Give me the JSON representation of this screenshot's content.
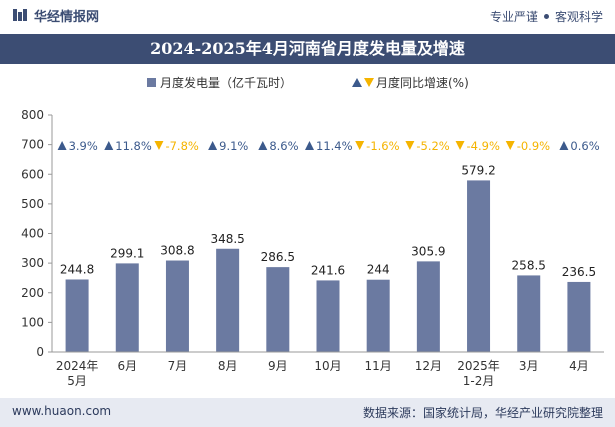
{
  "header": {
    "brand": "华经情报网",
    "slogan_left": "专业严谨",
    "slogan_right": "客观科学"
  },
  "footer": {
    "website": "www.huaon.com",
    "source": "数据来源：国家统计局，华经产业研究院整理"
  },
  "colors": {
    "bar": "#6b7aa1",
    "up": "#3c5a8c",
    "down": "#f5b400",
    "header": "#3c4d73"
  },
  "chart_data": {
    "type": "bar",
    "title": "2024-2025年4月河南省月度发电量及增速",
    "categories": [
      [
        "2024年",
        "5月"
      ],
      [
        "6月"
      ],
      [
        "7月"
      ],
      [
        "8月"
      ],
      [
        "9月"
      ],
      [
        "10月"
      ],
      [
        "11月"
      ],
      [
        "12月"
      ],
      [
        "2025年",
        "1-2月"
      ],
      [
        "3月"
      ],
      [
        "4月"
      ]
    ],
    "series": [
      {
        "name": "月度发电量（亿千瓦时）",
        "values": [
          244.8,
          299.1,
          308.8,
          348.5,
          286.5,
          241.6,
          244,
          305.9,
          579.2,
          258.5,
          236.5
        ]
      },
      {
        "name": "月度同比增速(%)",
        "values": [
          3.9,
          11.8,
          -7.8,
          9.1,
          8.6,
          11.4,
          -1.6,
          -5.2,
          -4.9,
          -0.9,
          0.6
        ]
      }
    ],
    "growth_labels": [
      "3.9%",
      "11.8%",
      "-7.8%",
      "9.1%",
      "8.6%",
      "11.4%",
      "-1.6%",
      "-5.2%",
      "-4.9%",
      "-0.9%",
      "0.6%"
    ],
    "value_labels": [
      "244.8",
      "299.1",
      "308.8",
      "348.5",
      "286.5",
      "241.6",
      "244",
      "305.9",
      "579.2",
      "258.5",
      "236.5"
    ],
    "y_ticks": [
      "0",
      "100",
      "200",
      "300",
      "400",
      "500",
      "600",
      "700",
      "800"
    ],
    "ylim": [
      0,
      800
    ],
    "legend_position": "top-center",
    "grid": false
  }
}
